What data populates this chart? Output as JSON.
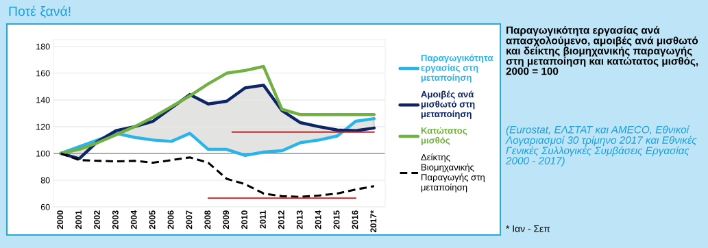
{
  "chart_data": {
    "type": "line",
    "title": "Ποτέ ξανά!",
    "subtitle": "Παραγωγικότητα εργασίας ανά απασχολούμενο, αμοιβές ανά μισθωτό και δείκτης βιομηχανικής παραγωγής στη μεταποίηση και κατώτατος μισθός,\n2000 = 100",
    "annotations": [
      "(Eurostat, ΕΛΣΤΑΤ και AMECO, Εθνικοί Λογαριασμοί 30 τρίμηνο 2017 και Εθνικές Γενικές Συλλογικές Συμβάσεις Εργασίας 2000 - 2017)",
      "* Ιαν - Σεπ"
    ],
    "x": [
      2000,
      2001,
      2002,
      2003,
      2004,
      2005,
      2006,
      2007,
      2008,
      2009,
      2010,
      2011,
      2012,
      2013,
      2014,
      2015,
      2016,
      2017
    ],
    "series": [
      {
        "name": "Παραγωγικότητα εργασίας στη μεταποίηση",
        "color": "#29b5ea",
        "values": [
          100,
          105,
          110,
          115,
          112,
          110,
          109,
          115,
          103,
          103,
          98.5,
          101,
          102,
          108,
          110,
          113,
          124,
          126
        ]
      },
      {
        "name": "Αμοιβές ανά μισθωτό στη μεταποίηση",
        "color": "#0d2566",
        "values": [
          100,
          96,
          109,
          117,
          120,
          124,
          134,
          144,
          137,
          139,
          149,
          151,
          132,
          123,
          120,
          117.5,
          117,
          119
        ],
        "lower": [
          100,
          105,
          110,
          115,
          112,
          110,
          109,
          115,
          103,
          103,
          98.5,
          101,
          102,
          108,
          110,
          113,
          124,
          126
        ],
        "upper": [
          100,
          96,
          109,
          117,
          120,
          124,
          134,
          144,
          137,
          139,
          149,
          151,
          132,
          123,
          120,
          117.5,
          117,
          119
        ]
      },
      {
        "name": "Κατώτατος μισθός",
        "color": "#72b043",
        "values": [
          100,
          103,
          108,
          114,
          120,
          127,
          135,
          143,
          152,
          160,
          162,
          165,
          133,
          129,
          129,
          129,
          129,
          129
        ]
      },
      {
        "name": "Δείκτης Βιομηχανικής Παραγωγής στη μεταποίηση",
        "color": "#000000",
        "line_style": "dashed",
        "values": [
          100,
          95,
          94.5,
          94,
          94.5,
          93,
          95,
          97,
          93,
          81,
          77,
          70,
          68,
          67.5,
          68.5,
          70,
          73,
          75.5
        ]
      },
      {
        "color": "#c0282d",
        "x": [
          2009.3,
          2017
        ],
        "values": [
          116,
          116
        ]
      },
      {
        "color": "#c0282d",
        "x": [
          2008,
          2016
        ],
        "values": [
          66.5,
          66.5
        ]
      }
    ],
    "ref_lines": [
      {
        "axis": "y",
        "value": 100,
        "color": "#808080"
      }
    ],
    "xlim": [
      1999.6,
      2017.6
    ],
    "ylim": [
      60,
      185
    ],
    "xticks": [
      2000,
      2001,
      2002,
      2003,
      2004,
      2005,
      2006,
      2007,
      2008,
      2009,
      2010,
      2011,
      2012,
      2013,
      2014,
      2015,
      2016,
      {
        "value": 2017,
        "label": "2017*"
      }
    ],
    "yticks": [
      60,
      80,
      100,
      120,
      140,
      160,
      180
    ],
    "grid": "y",
    "legend": "right",
    "marker": "none",
    "line_style": "solid"
  }
}
